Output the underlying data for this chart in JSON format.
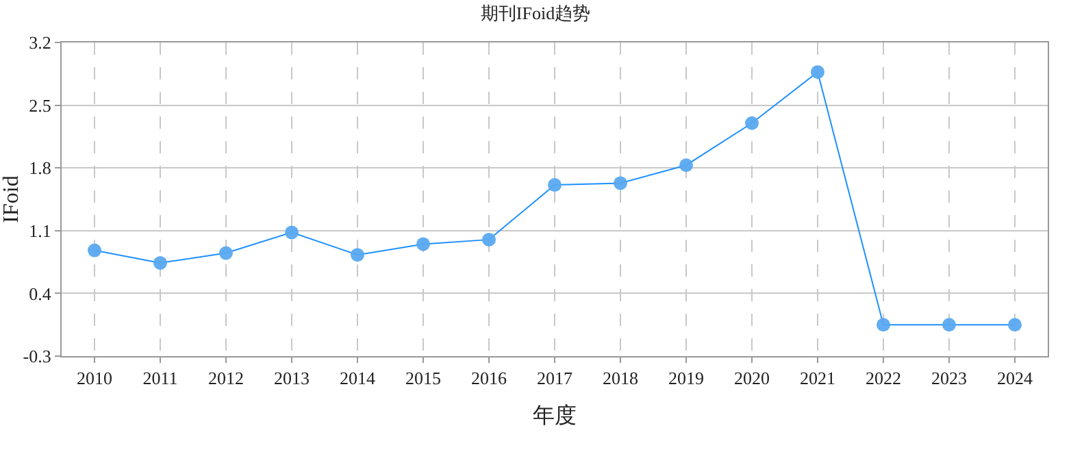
{
  "chart_data": {
    "type": "line",
    "title": "期刊IFoid趋势",
    "xlabel": "年度",
    "ylabel": "IFoid",
    "categories": [
      "2010",
      "2011",
      "2012",
      "2013",
      "2014",
      "2015",
      "2016",
      "2017",
      "2018",
      "2019",
      "2020",
      "2021",
      "2022",
      "2023",
      "2024"
    ],
    "series": [
      {
        "color": "#1e90ff",
        "values": [
          0.88,
          0.74,
          0.85,
          1.08,
          0.83,
          0.95,
          1.0,
          1.61,
          1.63,
          1.83,
          2.3,
          2.87,
          0.05,
          0.05,
          0.05
        ]
      }
    ],
    "ylim": [
      -0.3,
      3.2
    ],
    "yticks": [
      -0.3,
      0.4,
      1.1,
      1.8,
      2.5,
      3.2
    ],
    "grid": true,
    "marker": "circle"
  }
}
